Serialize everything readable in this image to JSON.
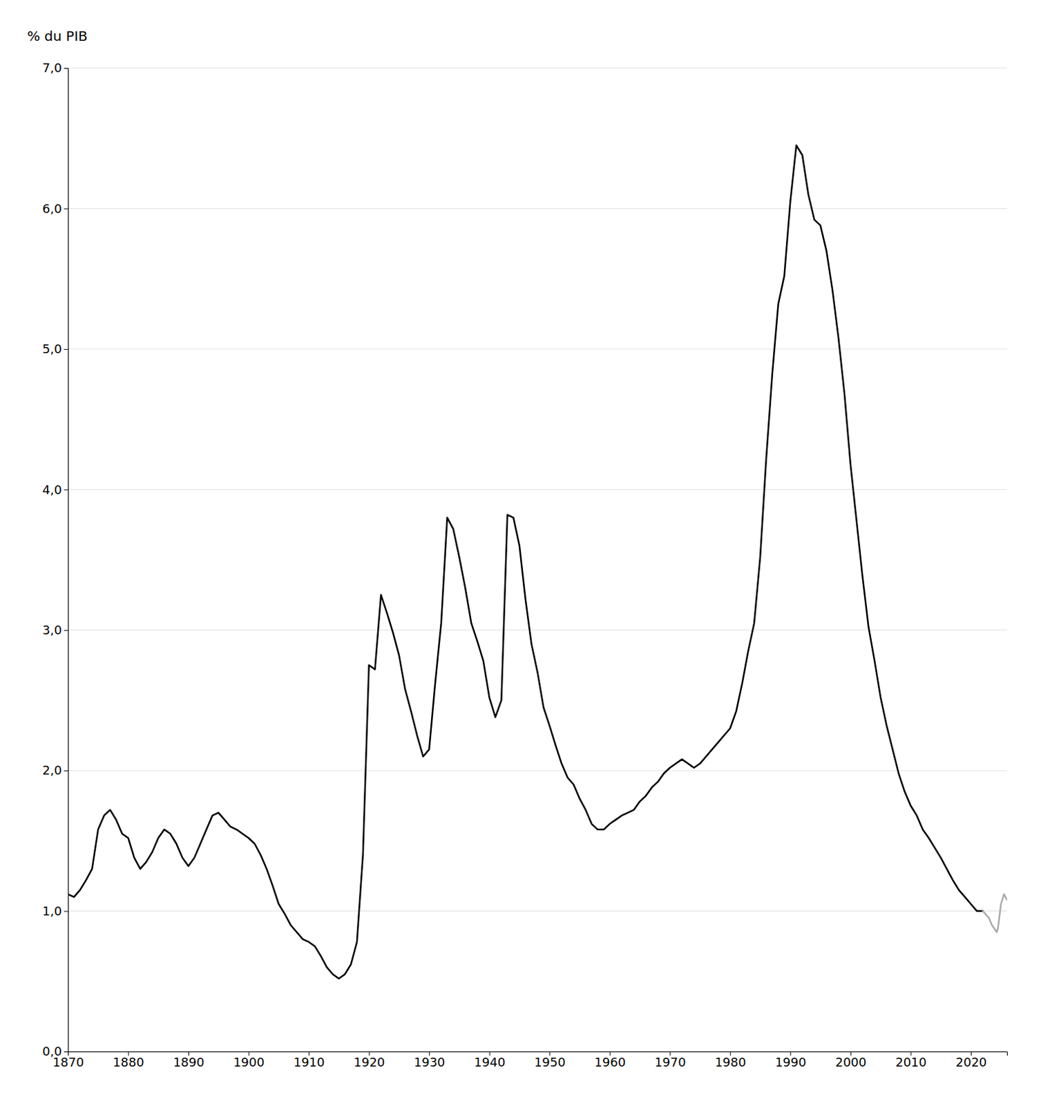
{
  "chart_data": {
    "type": "line",
    "y_label": "% du PIB",
    "xlim": [
      1870,
      2026
    ],
    "ylim": [
      0.0,
      7.0
    ],
    "xticks": [
      1870,
      1880,
      1890,
      1900,
      1910,
      1920,
      1930,
      1940,
      1950,
      1960,
      1970,
      1980,
      1990,
      2000,
      2010,
      2020
    ],
    "yticks": [
      {
        "value": 0.0,
        "label": "0,0"
      },
      {
        "value": 1.0,
        "label": "1,0"
      },
      {
        "value": 2.0,
        "label": "2,0"
      },
      {
        "value": 3.0,
        "label": "3,0"
      },
      {
        "value": 4.0,
        "label": "4,0"
      },
      {
        "value": 5.0,
        "label": "5,0"
      },
      {
        "value": 6.0,
        "label": "6,0"
      },
      {
        "value": 7.0,
        "label": "7,0"
      }
    ],
    "grid": true,
    "series": [
      {
        "color": "#000000",
        "x": [
          1870,
          1871,
          1872,
          1873,
          1874,
          1875,
          1876,
          1877,
          1878,
          1879,
          1880,
          1881,
          1882,
          1883,
          1884,
          1885,
          1886,
          1887,
          1888,
          1889,
          1890,
          1891,
          1892,
          1893,
          1894,
          1895,
          1896,
          1897,
          1898,
          1899,
          1900,
          1901,
          1902,
          1903,
          1904,
          1905,
          1906,
          1907,
          1908,
          1909,
          1910,
          1911,
          1912,
          1913,
          1914,
          1915,
          1916,
          1917,
          1918,
          1919,
          1920,
          1921,
          1922,
          1923,
          1924,
          1925,
          1926,
          1927,
          1928,
          1929,
          1930,
          1931,
          1932,
          1933,
          1934,
          1935,
          1936,
          1937,
          1938,
          1939,
          1940,
          1941,
          1942,
          1943,
          1944,
          1945,
          1946,
          1947,
          1948,
          1949,
          1950,
          1951,
          1952,
          1953,
          1954,
          1955,
          1956,
          1957,
          1958,
          1959,
          1960,
          1961,
          1962,
          1963,
          1964,
          1965,
          1966,
          1967,
          1968,
          1969,
          1970,
          1971,
          1972,
          1973,
          1974,
          1975,
          1976,
          1977,
          1978,
          1979,
          1980,
          1981,
          1982,
          1983,
          1984,
          1985,
          1986,
          1987,
          1988,
          1989,
          1990,
          1991,
          1992,
          1993,
          1994,
          1995,
          1996,
          1997,
          1998,
          1999,
          2000,
          2001,
          2002,
          2003,
          2004,
          2005,
          2006,
          2007,
          2008,
          2009,
          2010,
          2011,
          2012,
          2013,
          2014,
          2015,
          2016,
          2017,
          2018,
          2019,
          2020,
          2021,
          2022
        ],
        "values": [
          1.12,
          1.1,
          1.15,
          1.22,
          1.3,
          1.58,
          1.68,
          1.72,
          1.65,
          1.55,
          1.52,
          1.38,
          1.3,
          1.35,
          1.42,
          1.52,
          1.58,
          1.55,
          1.48,
          1.38,
          1.32,
          1.38,
          1.48,
          1.58,
          1.68,
          1.7,
          1.65,
          1.6,
          1.58,
          1.55,
          1.52,
          1.48,
          1.4,
          1.3,
          1.18,
          1.05,
          0.98,
          0.9,
          0.85,
          0.8,
          0.78,
          0.75,
          0.68,
          0.6,
          0.55,
          0.52,
          0.55,
          0.62,
          0.78,
          1.4,
          2.75,
          2.72,
          3.25,
          3.12,
          2.98,
          2.82,
          2.58,
          2.42,
          2.25,
          2.1,
          2.15,
          2.62,
          3.05,
          3.8,
          3.72,
          3.52,
          3.3,
          3.05,
          2.92,
          2.78,
          2.52,
          2.38,
          2.5,
          3.82,
          3.8,
          3.6,
          3.22,
          2.9,
          2.7,
          2.45,
          2.32,
          2.18,
          2.05,
          1.95,
          1.9,
          1.8,
          1.72,
          1.62,
          1.58,
          1.58,
          1.62,
          1.65,
          1.68,
          1.7,
          1.72,
          1.78,
          1.82,
          1.88,
          1.92,
          1.98,
          2.02,
          2.05,
          2.08,
          2.05,
          2.02,
          2.05,
          2.1,
          2.15,
          2.2,
          2.25,
          2.3,
          2.42,
          2.62,
          2.85,
          3.05,
          3.52,
          4.22,
          4.82,
          5.32,
          5.52,
          6.05,
          6.45,
          6.38,
          6.1,
          5.92,
          5.88,
          5.7,
          5.42,
          5.08,
          4.68,
          4.18,
          3.78,
          3.38,
          3.02,
          2.78,
          2.52,
          2.32,
          2.15,
          1.98,
          1.85,
          1.75,
          1.68,
          1.58,
          1.52,
          1.45,
          1.38,
          1.3,
          1.22,
          1.15,
          1.1,
          1.05,
          1.0,
          1.0
        ]
      },
      {
        "color": "#aaaaaa",
        "x": [
          2022,
          2023,
          2023.5,
          2024,
          2024.3,
          2024.5,
          2025,
          2025.5,
          2026
        ],
        "values": [
          1.0,
          0.95,
          0.9,
          0.87,
          0.85,
          0.88,
          1.05,
          1.12,
          1.08
        ]
      }
    ]
  }
}
